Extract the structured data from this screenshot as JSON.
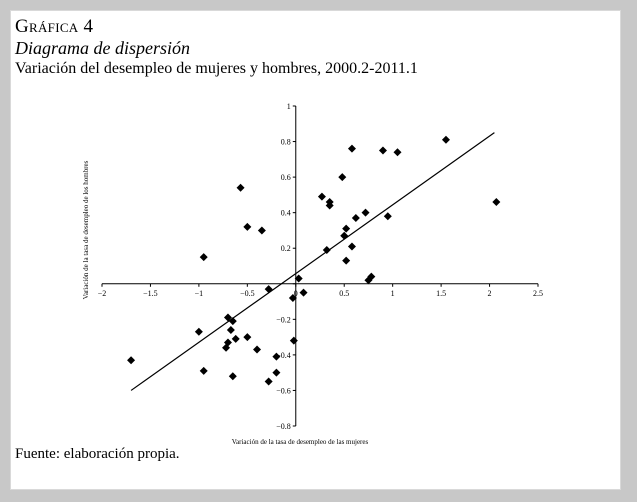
{
  "figure": {
    "label": "Gráfica 4",
    "title": "Diagrama de dispersión",
    "subtitle": "Variación del desempleo de mujeres y hombres, 2000.2-2011.1",
    "source": "Fuente: elaboración propia."
  },
  "chart_data": {
    "type": "scatter",
    "xlabel": "Variación de la tasa de desempleo de las mujeres",
    "ylabel": "Variación de la tasa de desempleo de los hombres",
    "xlim": [
      -2,
      2.5
    ],
    "ylim": [
      -0.8,
      1
    ],
    "xticks": [
      -2,
      -1.5,
      -1,
      -0.5,
      0,
      0.5,
      1,
      1.5,
      2,
      2.5
    ],
    "yticks": [
      -0.8,
      -0.6,
      -0.4,
      -0.2,
      0,
      0.2,
      0.4,
      0.6,
      0.8,
      1
    ],
    "xtick_labels": [
      "−2",
      "−1.5",
      "−1",
      "−0.5",
      "0",
      "0.5",
      "1",
      "1.5",
      "2",
      "2.5"
    ],
    "ytick_labels": [
      "−0.8",
      "−0.6",
      "−0.4",
      "−0.2",
      "0",
      "0.2",
      "0.4",
      "0.6",
      "0.8",
      "1"
    ],
    "grid": false,
    "marker": "diamond",
    "marker_color": "#000000",
    "points": [
      [
        -1.7,
        -0.43
      ],
      [
        -1.0,
        -0.27
      ],
      [
        -0.95,
        -0.49
      ],
      [
        -0.95,
        0.15
      ],
      [
        -0.7,
        -0.19
      ],
      [
        -0.72,
        -0.36
      ],
      [
        -0.7,
        -0.33
      ],
      [
        -0.67,
        -0.26
      ],
      [
        -0.65,
        -0.21
      ],
      [
        -0.65,
        -0.52
      ],
      [
        -0.62,
        -0.31
      ],
      [
        -0.57,
        0.54
      ],
      [
        -0.5,
        -0.3
      ],
      [
        -0.5,
        0.32
      ],
      [
        -0.4,
        -0.37
      ],
      [
        -0.35,
        0.3
      ],
      [
        -0.28,
        -0.03
      ],
      [
        -0.28,
        -0.55
      ],
      [
        -0.2,
        -0.5
      ],
      [
        -0.2,
        -0.41
      ],
      [
        -0.03,
        -0.08
      ],
      [
        -0.02,
        -0.32
      ],
      [
        0.03,
        0.03
      ],
      [
        0.08,
        -0.05
      ],
      [
        0.27,
        0.49
      ],
      [
        0.32,
        0.19
      ],
      [
        0.35,
        0.46
      ],
      [
        0.35,
        0.44
      ],
      [
        0.48,
        0.6
      ],
      [
        0.5,
        0.27
      ],
      [
        0.52,
        0.31
      ],
      [
        0.52,
        0.13
      ],
      [
        0.58,
        0.76
      ],
      [
        0.58,
        0.21
      ],
      [
        0.62,
        0.37
      ],
      [
        0.72,
        0.4
      ],
      [
        0.75,
        0.02
      ],
      [
        0.78,
        0.04
      ],
      [
        0.9,
        0.75
      ],
      [
        0.95,
        0.38
      ],
      [
        1.05,
        0.74
      ],
      [
        1.55,
        0.81
      ],
      [
        2.07,
        0.46
      ]
    ],
    "trendline": {
      "from": [
        -1.7,
        -0.6
      ],
      "to": [
        2.05,
        0.85
      ]
    }
  }
}
